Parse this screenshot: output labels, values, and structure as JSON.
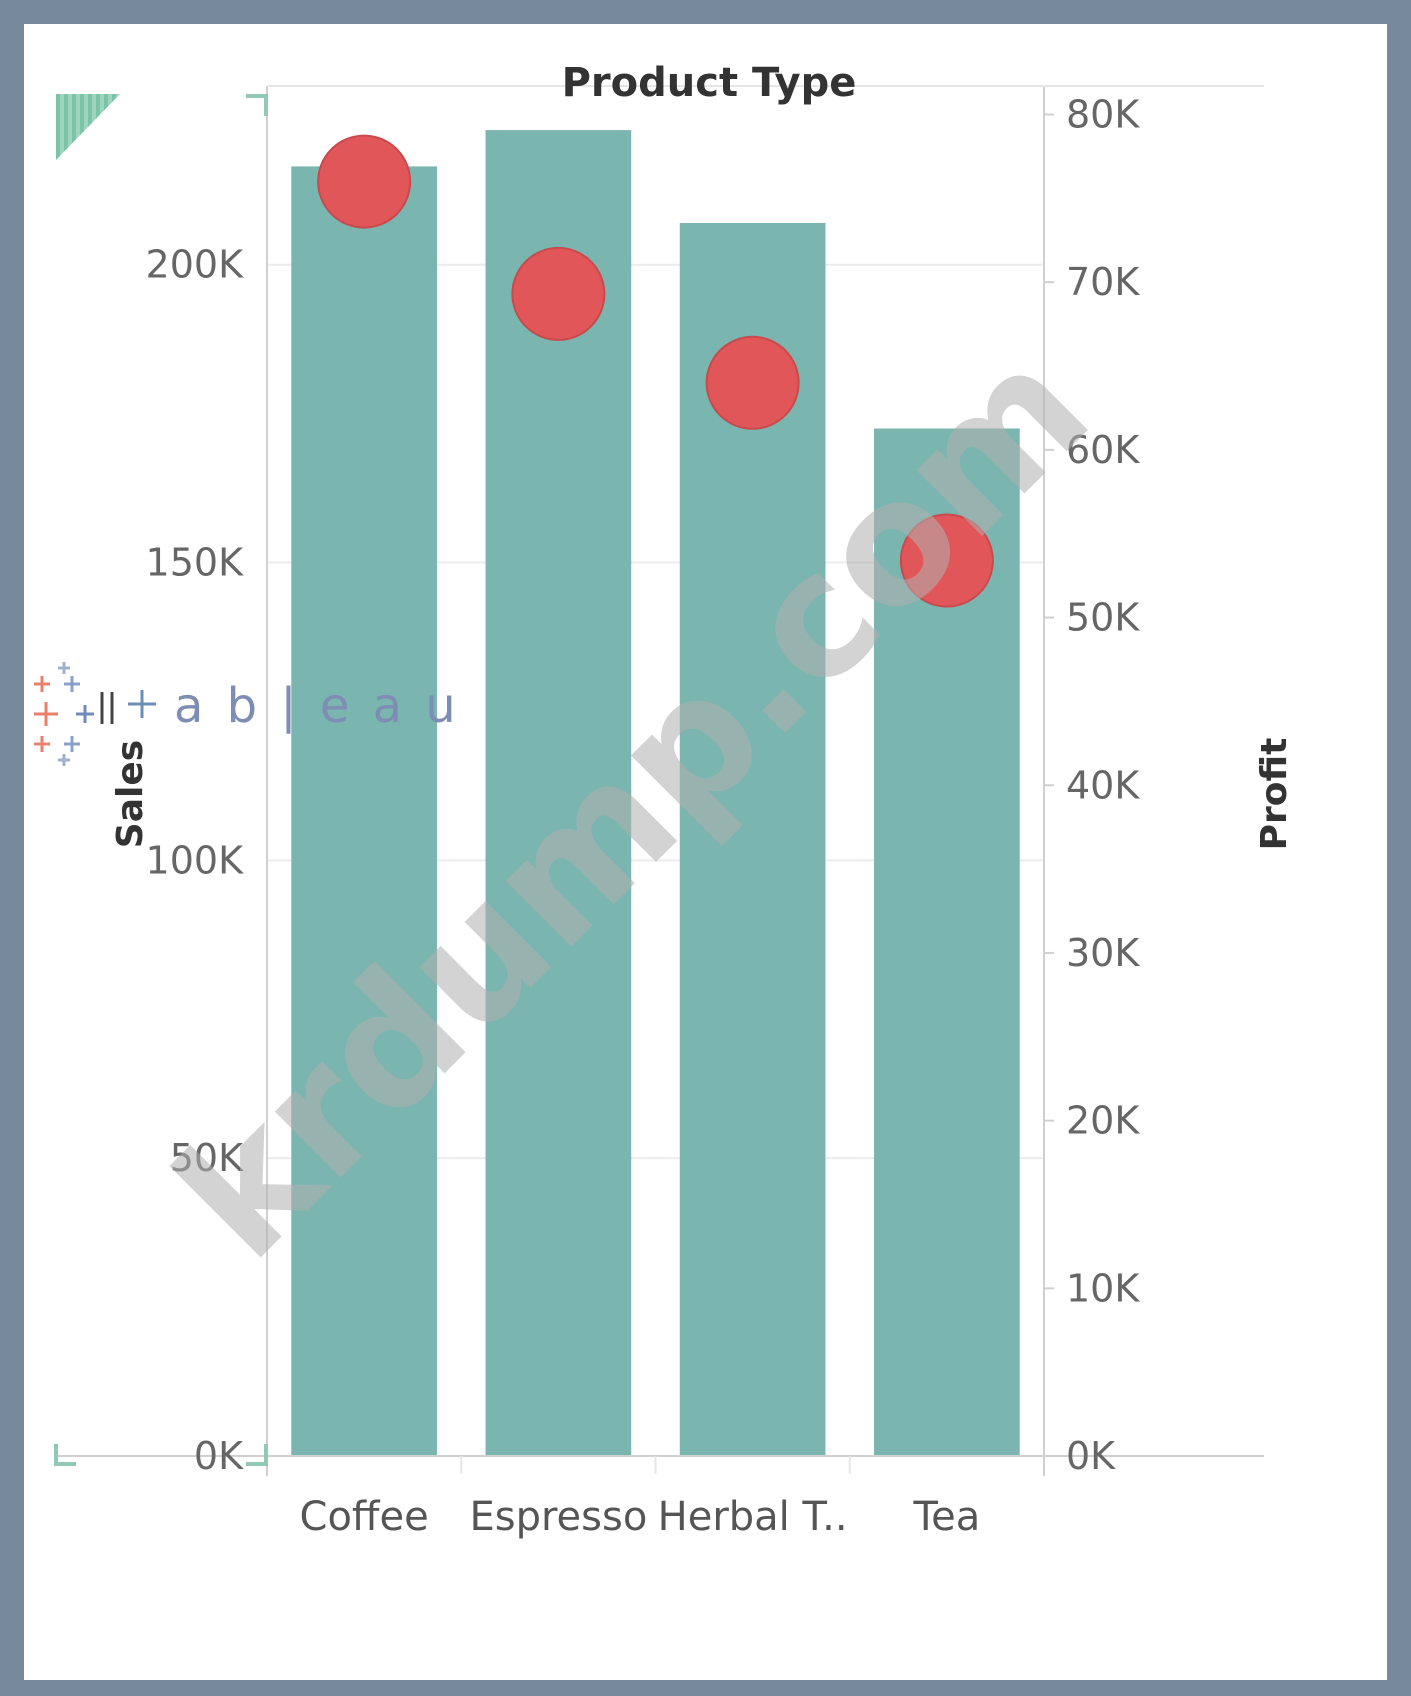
{
  "chart_data": {
    "type": "bar",
    "title": "Product Type",
    "categories": [
      "Coffee",
      "Espresso",
      "Herbal T..",
      "Tea"
    ],
    "series": [
      {
        "name": "Sales",
        "type": "bar",
        "axis": "left",
        "values": [
          216500,
          222600,
          207000,
          172500
        ]
      },
      {
        "name": "Profit",
        "type": "scatter",
        "axis": "right",
        "values": [
          76000,
          69300,
          64000,
          53400
        ]
      }
    ],
    "left_axis": {
      "label": "Sales",
      "ticks": [
        0,
        50000,
        100000,
        150000,
        200000
      ],
      "tick_labels": [
        "0K",
        "50K",
        "100K",
        "150K",
        "200K"
      ],
      "ylim": [
        0,
        230000
      ]
    },
    "right_axis": {
      "label": "Profit",
      "ticks": [
        0,
        10000,
        20000,
        30000,
        40000,
        50000,
        60000,
        70000,
        80000
      ],
      "tick_labels": [
        "0K",
        "10K",
        "20K",
        "30K",
        "40K",
        "50K",
        "60K",
        "70K",
        "80K"
      ],
      "ylim": [
        0,
        81700
      ]
    },
    "grid": true,
    "colors": {
      "bar": "#7bb5b0",
      "dot": "#e15759",
      "dot_outline": "#c84a4c",
      "grid": "#ececec",
      "axis": "#d0d0d0"
    }
  },
  "overlays": {
    "watermark_text": "krdump.com",
    "logo_text": "a b | e a u"
  }
}
